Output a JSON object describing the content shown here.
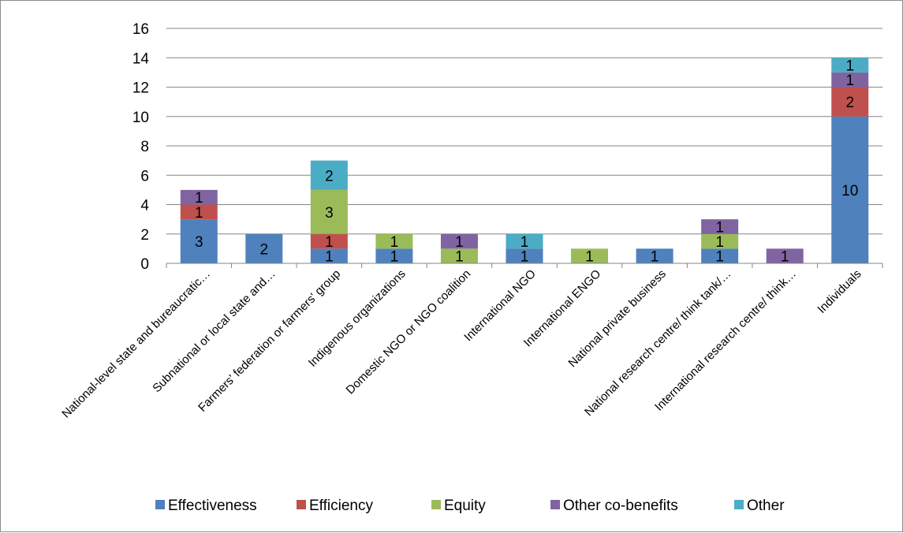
{
  "chart_data": {
    "type": "bar",
    "stacked": true,
    "title": "",
    "xlabel": "",
    "ylabel": "",
    "ylim": [
      0,
      16
    ],
    "yticks": [
      0,
      2,
      4,
      6,
      8,
      10,
      12,
      14,
      16
    ],
    "grid": true,
    "legend_position": "bottom",
    "categories": [
      "National-level state and bureaucratic…",
      "Subnational or local state and…",
      "Farmers' federation or farmers' group",
      "Indigenous organizations",
      "Domestic NGO or NGO coalition",
      "International NGO",
      "International ENGO",
      "National private business",
      "National research centre/ think tank/…",
      "International research centre/ think…",
      "Individuals"
    ],
    "series": [
      {
        "name": "Effectiveness",
        "color": "#4f81bd",
        "values": [
          3,
          2,
          1,
          1,
          0,
          1,
          0,
          1,
          1,
          0,
          10
        ]
      },
      {
        "name": "Efficiency",
        "color": "#c0504d",
        "values": [
          1,
          0,
          1,
          0,
          0,
          0,
          0,
          0,
          0,
          0,
          2
        ]
      },
      {
        "name": "Equity",
        "color": "#9bbb59",
        "values": [
          0,
          0,
          3,
          1,
          1,
          0,
          1,
          0,
          1,
          0,
          0
        ]
      },
      {
        "name": "Other co-benefits",
        "color": "#8064a2",
        "values": [
          1,
          0,
          0,
          0,
          1,
          0,
          0,
          0,
          1,
          1,
          1
        ]
      },
      {
        "name": "Other",
        "color": "#4bacc6",
        "values": [
          0,
          0,
          2,
          0,
          0,
          1,
          0,
          0,
          0,
          0,
          1
        ]
      }
    ]
  }
}
